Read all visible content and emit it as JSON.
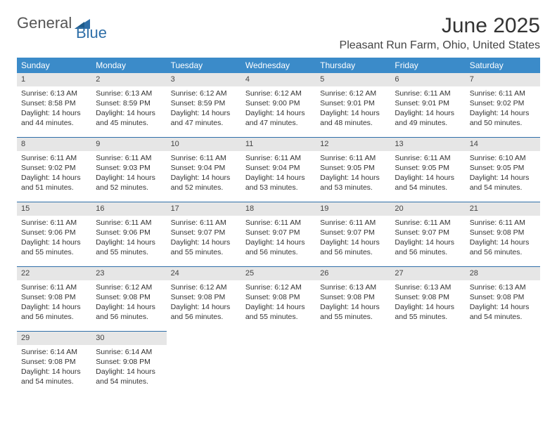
{
  "logo": {
    "general": "General",
    "blue": "Blue"
  },
  "title": "June 2025",
  "location": "Pleasant Run Farm, Ohio, United States",
  "colors": {
    "header_bg": "#3b8bc9",
    "header_text": "#ffffff",
    "rule": "#2f6fa8",
    "daynum_bg": "#e6e6e6",
    "logo_blue": "#2f6fa8",
    "logo_gray": "#555555"
  },
  "weekdays": [
    "Sunday",
    "Monday",
    "Tuesday",
    "Wednesday",
    "Thursday",
    "Friday",
    "Saturday"
  ],
  "weeks": [
    [
      {
        "n": "1",
        "sr": "6:13 AM",
        "ss": "8:58 PM",
        "dl": "14 hours and 44 minutes."
      },
      {
        "n": "2",
        "sr": "6:13 AM",
        "ss": "8:59 PM",
        "dl": "14 hours and 45 minutes."
      },
      {
        "n": "3",
        "sr": "6:12 AM",
        "ss": "8:59 PM",
        "dl": "14 hours and 47 minutes."
      },
      {
        "n": "4",
        "sr": "6:12 AM",
        "ss": "9:00 PM",
        "dl": "14 hours and 47 minutes."
      },
      {
        "n": "5",
        "sr": "6:12 AM",
        "ss": "9:01 PM",
        "dl": "14 hours and 48 minutes."
      },
      {
        "n": "6",
        "sr": "6:11 AM",
        "ss": "9:01 PM",
        "dl": "14 hours and 49 minutes."
      },
      {
        "n": "7",
        "sr": "6:11 AM",
        "ss": "9:02 PM",
        "dl": "14 hours and 50 minutes."
      }
    ],
    [
      {
        "n": "8",
        "sr": "6:11 AM",
        "ss": "9:02 PM",
        "dl": "14 hours and 51 minutes."
      },
      {
        "n": "9",
        "sr": "6:11 AM",
        "ss": "9:03 PM",
        "dl": "14 hours and 52 minutes."
      },
      {
        "n": "10",
        "sr": "6:11 AM",
        "ss": "9:04 PM",
        "dl": "14 hours and 52 minutes."
      },
      {
        "n": "11",
        "sr": "6:11 AM",
        "ss": "9:04 PM",
        "dl": "14 hours and 53 minutes."
      },
      {
        "n": "12",
        "sr": "6:11 AM",
        "ss": "9:05 PM",
        "dl": "14 hours and 53 minutes."
      },
      {
        "n": "13",
        "sr": "6:11 AM",
        "ss": "9:05 PM",
        "dl": "14 hours and 54 minutes."
      },
      {
        "n": "14",
        "sr": "6:10 AM",
        "ss": "9:05 PM",
        "dl": "14 hours and 54 minutes."
      }
    ],
    [
      {
        "n": "15",
        "sr": "6:11 AM",
        "ss": "9:06 PM",
        "dl": "14 hours and 55 minutes."
      },
      {
        "n": "16",
        "sr": "6:11 AM",
        "ss": "9:06 PM",
        "dl": "14 hours and 55 minutes."
      },
      {
        "n": "17",
        "sr": "6:11 AM",
        "ss": "9:07 PM",
        "dl": "14 hours and 55 minutes."
      },
      {
        "n": "18",
        "sr": "6:11 AM",
        "ss": "9:07 PM",
        "dl": "14 hours and 56 minutes."
      },
      {
        "n": "19",
        "sr": "6:11 AM",
        "ss": "9:07 PM",
        "dl": "14 hours and 56 minutes."
      },
      {
        "n": "20",
        "sr": "6:11 AM",
        "ss": "9:07 PM",
        "dl": "14 hours and 56 minutes."
      },
      {
        "n": "21",
        "sr": "6:11 AM",
        "ss": "9:08 PM",
        "dl": "14 hours and 56 minutes."
      }
    ],
    [
      {
        "n": "22",
        "sr": "6:11 AM",
        "ss": "9:08 PM",
        "dl": "14 hours and 56 minutes."
      },
      {
        "n": "23",
        "sr": "6:12 AM",
        "ss": "9:08 PM",
        "dl": "14 hours and 56 minutes."
      },
      {
        "n": "24",
        "sr": "6:12 AM",
        "ss": "9:08 PM",
        "dl": "14 hours and 56 minutes."
      },
      {
        "n": "25",
        "sr": "6:12 AM",
        "ss": "9:08 PM",
        "dl": "14 hours and 55 minutes."
      },
      {
        "n": "26",
        "sr": "6:13 AM",
        "ss": "9:08 PM",
        "dl": "14 hours and 55 minutes."
      },
      {
        "n": "27",
        "sr": "6:13 AM",
        "ss": "9:08 PM",
        "dl": "14 hours and 55 minutes."
      },
      {
        "n": "28",
        "sr": "6:13 AM",
        "ss": "9:08 PM",
        "dl": "14 hours and 54 minutes."
      }
    ],
    [
      {
        "n": "29",
        "sr": "6:14 AM",
        "ss": "9:08 PM",
        "dl": "14 hours and 54 minutes."
      },
      {
        "n": "30",
        "sr": "6:14 AM",
        "ss": "9:08 PM",
        "dl": "14 hours and 54 minutes."
      },
      null,
      null,
      null,
      null,
      null
    ]
  ],
  "labels": {
    "sunrise": "Sunrise:",
    "sunset": "Sunset:",
    "daylight": "Daylight:"
  }
}
